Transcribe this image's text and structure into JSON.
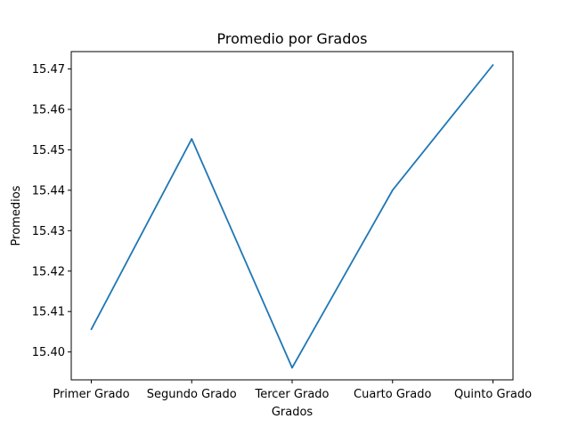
{
  "chart_data": {
    "type": "line",
    "title": "Promedio por Grados",
    "xlabel": "Grados",
    "ylabel": "Promedios",
    "categories": [
      "Primer Grado",
      "Segundo Grado",
      "Tercer Grado",
      "Cuarto Grado",
      "Quinto Grado"
    ],
    "series": [
      {
        "values": [
          15.4056,
          15.4527,
          15.3961,
          15.44,
          15.471
        ]
      }
    ],
    "ylim": [
      15.3931,
      15.4743
    ],
    "yticks": [
      "15.40",
      "15.41",
      "15.42",
      "15.43",
      "15.44",
      "15.45",
      "15.46",
      "15.47"
    ],
    "grid": false,
    "line_color": "#1f77b4"
  }
}
